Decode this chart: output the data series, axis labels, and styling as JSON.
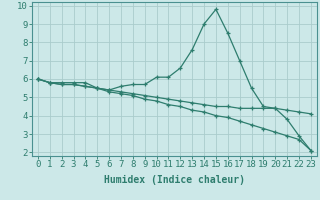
{
  "xlabel": "Humidex (Indice chaleur)",
  "ylabel": "",
  "x": [
    0,
    1,
    2,
    3,
    4,
    5,
    6,
    7,
    8,
    9,
    10,
    11,
    12,
    13,
    14,
    15,
    16,
    17,
    18,
    19,
    20,
    21,
    22,
    23
  ],
  "line1": [
    6.0,
    5.8,
    5.8,
    5.8,
    5.8,
    5.5,
    5.4,
    5.6,
    5.7,
    5.7,
    6.1,
    6.1,
    6.6,
    7.6,
    9.0,
    9.8,
    8.5,
    7.0,
    5.5,
    4.5,
    4.4,
    3.8,
    2.9,
    2.1
  ],
  "line2": [
    6.0,
    5.8,
    5.7,
    5.7,
    5.6,
    5.5,
    5.4,
    5.3,
    5.2,
    5.1,
    5.0,
    4.9,
    4.8,
    4.7,
    4.6,
    4.5,
    4.5,
    4.4,
    4.4,
    4.4,
    4.4,
    4.3,
    4.2,
    4.1
  ],
  "line3": [
    6.0,
    5.8,
    5.7,
    5.7,
    5.6,
    5.5,
    5.3,
    5.2,
    5.1,
    4.9,
    4.8,
    4.6,
    4.5,
    4.3,
    4.2,
    4.0,
    3.9,
    3.7,
    3.5,
    3.3,
    3.1,
    2.9,
    2.7,
    2.1
  ],
  "color": "#2e7d6e",
  "bg_color": "#cce8e8",
  "grid_color": "#aacccc",
  "ylim_min": 1.8,
  "ylim_max": 10.2,
  "yticks": [
    2,
    3,
    4,
    5,
    6,
    7,
    8,
    9,
    10
  ],
  "xticks": [
    0,
    1,
    2,
    3,
    4,
    5,
    6,
    7,
    8,
    9,
    10,
    11,
    12,
    13,
    14,
    15,
    16,
    17,
    18,
    19,
    20,
    21,
    22,
    23
  ],
  "xlabel_fontsize": 7,
  "tick_fontsize": 6.5,
  "spine_color": "#4a9090"
}
